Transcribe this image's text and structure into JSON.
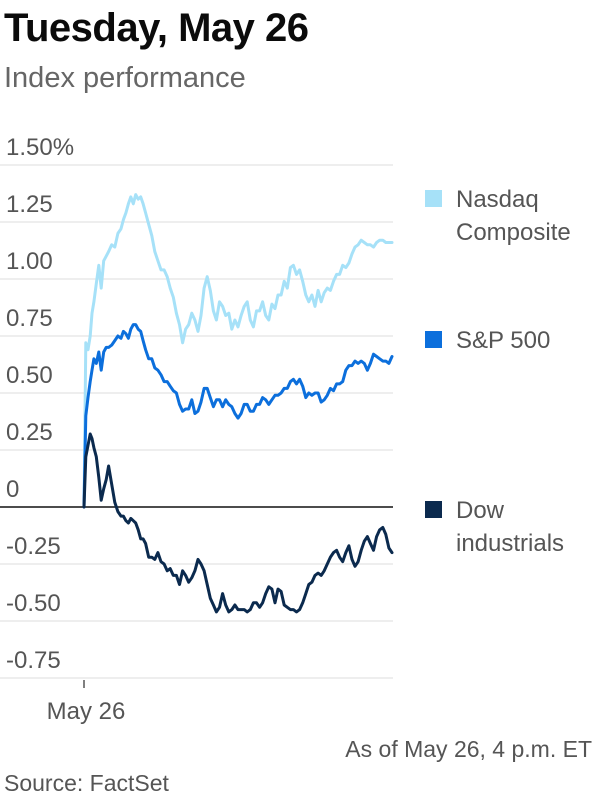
{
  "header": {
    "title": "Tuesday, May 26",
    "subtitle": "Index performance"
  },
  "footer": {
    "as_of": "As of May 26, 4 p.m. ET",
    "source": "Source: FactSet"
  },
  "chart_data": {
    "type": "line",
    "title": "Tuesday, May 26",
    "subtitle": "Index performance",
    "xlabel": "",
    "ylabel": "",
    "x_tick_labels": [
      "May 26"
    ],
    "y_ticks": [
      1.5,
      1.25,
      1.0,
      0.75,
      0.5,
      0.25,
      0,
      -0.25,
      -0.5,
      -0.75
    ],
    "y_tick_labels": [
      "1.50%",
      "1.25",
      "1.00",
      "0.75",
      "0.50",
      "0.25",
      "0",
      "-0.25",
      "-0.50",
      "-0.75"
    ],
    "ylim": [
      -0.85,
      1.6
    ],
    "x_range": [
      0,
      100
    ],
    "grid": true,
    "legend_position": "right",
    "series": [
      {
        "name": "Nasdaq Composite",
        "legend": [
          "Nasdaq",
          "Composite"
        ],
        "color": "#a6e1f8",
        "x": [
          0,
          0.6,
          1.3,
          2,
          2.6,
          3.2,
          4,
          4.8,
          5.6,
          6.4,
          7.2,
          8,
          9,
          10,
          11,
          12,
          12.8,
          13.6,
          14.4,
          15.2,
          16,
          16.8,
          17.6,
          18.4,
          19.2,
          20,
          21,
          22,
          23,
          24,
          25,
          26,
          27,
          28,
          29,
          30,
          31,
          32,
          33,
          34,
          35,
          36,
          37,
          38,
          39,
          40,
          41,
          42,
          43,
          44,
          45,
          46,
          47,
          48,
          49,
          50,
          51,
          52,
          53,
          54,
          55,
          56,
          57,
          58,
          59,
          60,
          61,
          62,
          63,
          64,
          65,
          66,
          67,
          68,
          69,
          70,
          71,
          72,
          73,
          74,
          75,
          76,
          77,
          78,
          79,
          80,
          81,
          82,
          83,
          84,
          85,
          86,
          87,
          88,
          89,
          90,
          91,
          92,
          93,
          94,
          95,
          96,
          97,
          98,
          99,
          100
        ],
        "y": [
          0,
          0.72,
          0.69,
          0.75,
          0.85,
          0.9,
          0.98,
          1.06,
          0.96,
          1.08,
          1.1,
          1.12,
          1.15,
          1.14,
          1.2,
          1.22,
          1.26,
          1.29,
          1.33,
          1.36,
          1.33,
          1.37,
          1.35,
          1.36,
          1.33,
          1.29,
          1.24,
          1.19,
          1.12,
          1.08,
          1.04,
          1.04,
          1.01,
          0.96,
          0.92,
          0.85,
          0.8,
          0.72,
          0.78,
          0.8,
          0.85,
          0.82,
          0.77,
          0.84,
          0.96,
          1.01,
          0.95,
          0.86,
          0.82,
          0.9,
          0.88,
          0.84,
          0.85,
          0.78,
          0.82,
          0.79,
          0.84,
          0.88,
          0.9,
          0.82,
          0.79,
          0.86,
          0.86,
          0.9,
          0.84,
          0.82,
          0.89,
          0.87,
          0.93,
          0.93,
          0.99,
          0.96,
          1.05,
          1.06,
          1.02,
          1.04,
          0.99,
          0.93,
          0.9,
          0.93,
          0.88,
          0.95,
          0.9,
          0.94,
          0.96,
          0.95,
          0.99,
          1.02,
          1.02,
          1.06,
          1.05,
          1.07,
          1.11,
          1.14,
          1.15,
          1.17,
          1.16,
          1.15,
          1.15,
          1.14,
          1.16,
          1.17,
          1.17,
          1.16,
          1.16,
          1.16
        ]
      },
      {
        "name": "S&P 500",
        "legend": [
          "S&P 500"
        ],
        "color": "#0c6fdc",
        "x": [
          0,
          0.6,
          1.3,
          2,
          2.6,
          3.2,
          4,
          4.8,
          5.6,
          6.4,
          7.2,
          8,
          9,
          10,
          11,
          12,
          12.8,
          13.6,
          14.4,
          15.2,
          16,
          16.8,
          17.6,
          18.4,
          19.2,
          20,
          21,
          22,
          23,
          24,
          25,
          26,
          27,
          28,
          29,
          30,
          31,
          32,
          33,
          34,
          35,
          36,
          37,
          38,
          39,
          40,
          41,
          42,
          43,
          44,
          45,
          46,
          47,
          48,
          49,
          50,
          51,
          52,
          53,
          54,
          55,
          56,
          57,
          58,
          59,
          60,
          61,
          62,
          63,
          64,
          65,
          66,
          67,
          68,
          69,
          70,
          71,
          72,
          73,
          74,
          75,
          76,
          77,
          78,
          79,
          80,
          81,
          82,
          83,
          84,
          85,
          86,
          87,
          88,
          89,
          90,
          91,
          92,
          93,
          94,
          95,
          96,
          97,
          98,
          99,
          100
        ],
        "y": [
          0,
          0.4,
          0.48,
          0.55,
          0.6,
          0.65,
          0.63,
          0.68,
          0.6,
          0.68,
          0.7,
          0.7,
          0.71,
          0.73,
          0.75,
          0.74,
          0.77,
          0.76,
          0.74,
          0.78,
          0.8,
          0.8,
          0.78,
          0.77,
          0.73,
          0.69,
          0.65,
          0.65,
          0.61,
          0.6,
          0.58,
          0.55,
          0.55,
          0.53,
          0.51,
          0.5,
          0.45,
          0.42,
          0.43,
          0.43,
          0.47,
          0.41,
          0.42,
          0.46,
          0.52,
          0.52,
          0.48,
          0.44,
          0.47,
          0.47,
          0.44,
          0.47,
          0.45,
          0.44,
          0.41,
          0.39,
          0.41,
          0.45,
          0.45,
          0.42,
          0.42,
          0.45,
          0.45,
          0.48,
          0.47,
          0.45,
          0.47,
          0.49,
          0.49,
          0.5,
          0.52,
          0.52,
          0.55,
          0.56,
          0.54,
          0.56,
          0.53,
          0.48,
          0.5,
          0.49,
          0.5,
          0.5,
          0.46,
          0.47,
          0.49,
          0.52,
          0.51,
          0.54,
          0.54,
          0.55,
          0.6,
          0.62,
          0.62,
          0.64,
          0.63,
          0.64,
          0.63,
          0.6,
          0.63,
          0.67,
          0.66,
          0.65,
          0.64,
          0.64,
          0.63,
          0.66
        ]
      },
      {
        "name": "Dow industrials",
        "legend": [
          "Dow",
          "industrials"
        ],
        "color": "#0b2a4e",
        "x": [
          0,
          0.6,
          1.3,
          2,
          2.6,
          3.2,
          4,
          4.8,
          5.6,
          6.4,
          7.2,
          8,
          9,
          10,
          11,
          12,
          12.8,
          13.6,
          14.4,
          15.2,
          16,
          16.8,
          17.6,
          18.4,
          19.2,
          20,
          21,
          22,
          23,
          24,
          25,
          26,
          27,
          28,
          29,
          30,
          31,
          32,
          33,
          34,
          35,
          36,
          37,
          38,
          39,
          40,
          41,
          42,
          43,
          44,
          45,
          46,
          47,
          48,
          49,
          50,
          51,
          52,
          53,
          54,
          55,
          56,
          57,
          58,
          59,
          60,
          61,
          62,
          63,
          64,
          65,
          66,
          67,
          68,
          69,
          70,
          71,
          72,
          73,
          74,
          75,
          76,
          77,
          78,
          79,
          80,
          81,
          82,
          83,
          84,
          85,
          86,
          87,
          88,
          89,
          90,
          91,
          92,
          93,
          94,
          95,
          96,
          97,
          98,
          99,
          100
        ],
        "y": [
          0,
          0.22,
          0.27,
          0.32,
          0.3,
          0.26,
          0.22,
          0.13,
          0.03,
          0.08,
          0.12,
          0.18,
          0.1,
          0.02,
          -0.02,
          -0.04,
          -0.04,
          -0.06,
          -0.07,
          -0.05,
          -0.06,
          -0.07,
          -0.1,
          -0.14,
          -0.14,
          -0.16,
          -0.22,
          -0.22,
          -0.23,
          -0.2,
          -0.24,
          -0.25,
          -0.28,
          -0.27,
          -0.3,
          -0.3,
          -0.34,
          -0.28,
          -0.3,
          -0.33,
          -0.31,
          -0.28,
          -0.23,
          -0.25,
          -0.28,
          -0.34,
          -0.4,
          -0.43,
          -0.46,
          -0.44,
          -0.38,
          -0.43,
          -0.46,
          -0.45,
          -0.43,
          -0.45,
          -0.45,
          -0.45,
          -0.46,
          -0.45,
          -0.42,
          -0.42,
          -0.44,
          -0.42,
          -0.38,
          -0.35,
          -0.36,
          -0.42,
          -0.36,
          -0.37,
          -0.43,
          -0.44,
          -0.45,
          -0.45,
          -0.46,
          -0.45,
          -0.42,
          -0.38,
          -0.34,
          -0.33,
          -0.3,
          -0.29,
          -0.3,
          -0.28,
          -0.25,
          -0.22,
          -0.2,
          -0.19,
          -0.22,
          -0.24,
          -0.2,
          -0.17,
          -0.23,
          -0.26,
          -0.24,
          -0.19,
          -0.15,
          -0.13,
          -0.16,
          -0.19,
          -0.13,
          -0.1,
          -0.09,
          -0.12,
          -0.18,
          -0.2
        ]
      }
    ]
  }
}
